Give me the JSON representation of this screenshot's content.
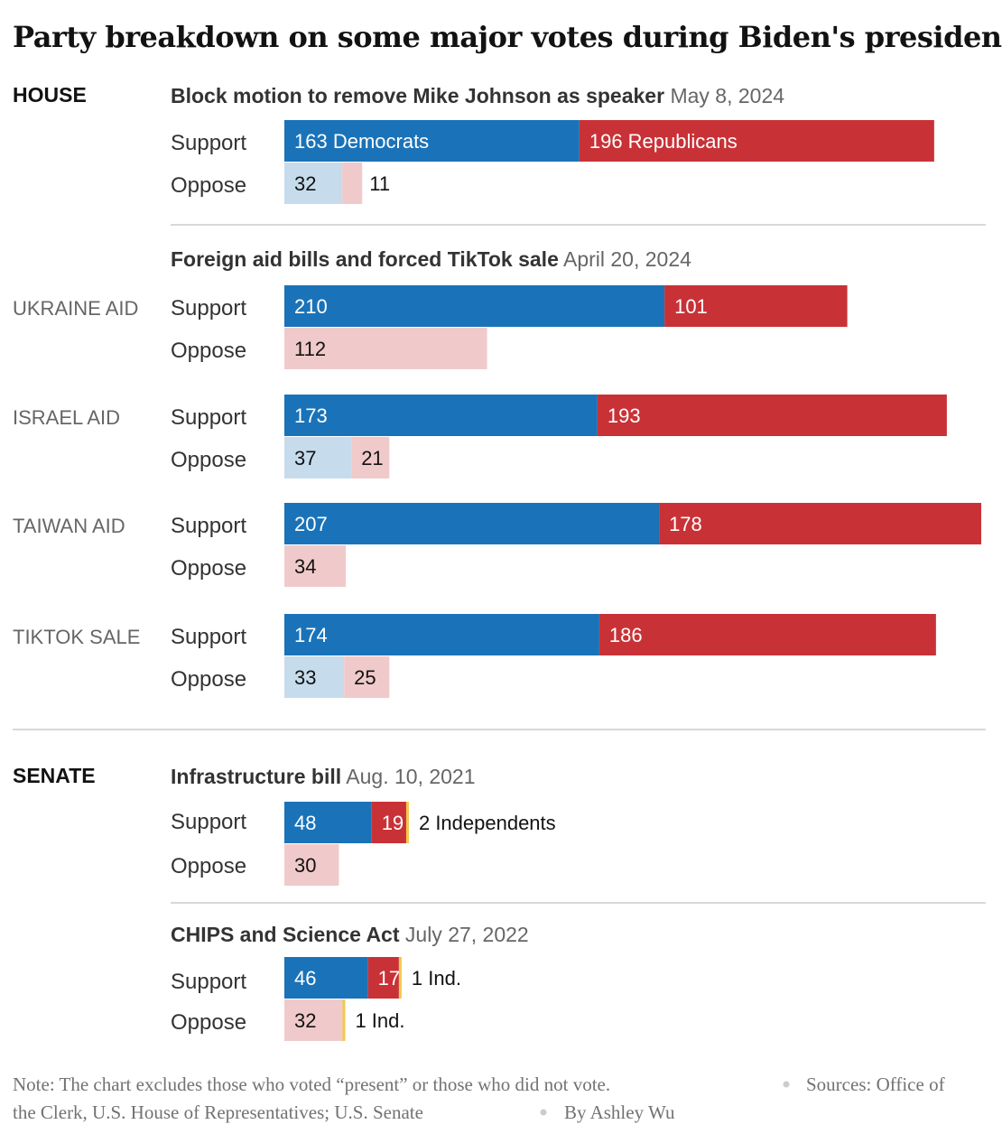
{
  "title": "Party breakdown on some major votes during Biden's presidency",
  "colors": {
    "dem_support": "#1a73b8",
    "rep_support": "#c83237",
    "dem_oppose": "#c6dcec",
    "rep_oppose": "#f0caca",
    "independent": "#f2c94c",
    "divider": "#cccccc"
  },
  "note": "Note: The chart excludes those who voted “present” or those who did not vote.",
  "sources": "Sources: Office of the Clerk, U.S. House of Representatives; U.S. Senate",
  "byline": "By Ashley Wu",
  "chart_data": {
    "type": "bar",
    "orientation": "horizontal",
    "stacked": true,
    "series": [
      {
        "name": "Democrats"
      },
      {
        "name": "Republicans"
      },
      {
        "name": "Independents"
      }
    ],
    "sections": [
      {
        "chamber": "HOUSE",
        "votes": [
          {
            "title": "Block motion to remove Mike Johnson as speaker",
            "date": "May 8, 2024",
            "items": [
              {
                "label": "",
                "support": {
                  "dem": 163,
                  "rep": 196,
                  "dem_label": "163 Democrats",
                  "rep_label": "196 Republicans"
                },
                "oppose": {
                  "dem": 32,
                  "rep": 11,
                  "dem_label": "32",
                  "rep_label": "11"
                }
              }
            ]
          },
          {
            "title": "Foreign aid bills and forced TikTok sale",
            "date": "April 20, 2024",
            "items": [
              {
                "label": "UKRAINE AID",
                "support": {
                  "dem": 210,
                  "rep": 101,
                  "dem_label": "210",
                  "rep_label": "101"
                },
                "oppose": {
                  "dem": 0,
                  "rep": 112,
                  "rep_label": "112"
                }
              },
              {
                "label": "ISRAEL AID",
                "support": {
                  "dem": 173,
                  "rep": 193,
                  "dem_label": "173",
                  "rep_label": "193"
                },
                "oppose": {
                  "dem": 37,
                  "rep": 21,
                  "dem_label": "37",
                  "rep_label": "21"
                }
              },
              {
                "label": "TAIWAN AID",
                "support": {
                  "dem": 207,
                  "rep": 178,
                  "dem_label": "207",
                  "rep_label": "178"
                },
                "oppose": {
                  "dem": 0,
                  "rep": 34,
                  "rep_label": "34"
                }
              },
              {
                "label": "TIKTOK SALE",
                "support": {
                  "dem": 174,
                  "rep": 186,
                  "dem_label": "174",
                  "rep_label": "186"
                },
                "oppose": {
                  "dem": 33,
                  "rep": 25,
                  "dem_label": "33",
                  "rep_label": "25"
                }
              }
            ]
          }
        ]
      },
      {
        "chamber": "SENATE",
        "votes": [
          {
            "title": "Infrastructure bill",
            "date": "Aug. 10, 2021",
            "items": [
              {
                "label": "",
                "support": {
                  "dem": 48,
                  "rep": 19,
                  "ind": 2,
                  "dem_label": "48",
                  "rep_label": "19",
                  "ind_label": "2 Independents"
                },
                "oppose": {
                  "dem": 0,
                  "rep": 30,
                  "rep_label": "30"
                }
              }
            ]
          },
          {
            "title": "CHIPS and Science Act",
            "date": "July 27, 2022",
            "items": [
              {
                "label": "",
                "support": {
                  "dem": 46,
                  "rep": 17,
                  "ind": 1,
                  "dem_label": "46",
                  "rep_label": "17",
                  "ind_label": "1 Ind."
                },
                "oppose": {
                  "dem": 0,
                  "rep": 32,
                  "ind": 1,
                  "rep_label": "32",
                  "ind_label": "1 Ind."
                }
              }
            ]
          }
        ]
      }
    ],
    "row_labels": {
      "support": "Support",
      "oppose": "Oppose"
    }
  }
}
